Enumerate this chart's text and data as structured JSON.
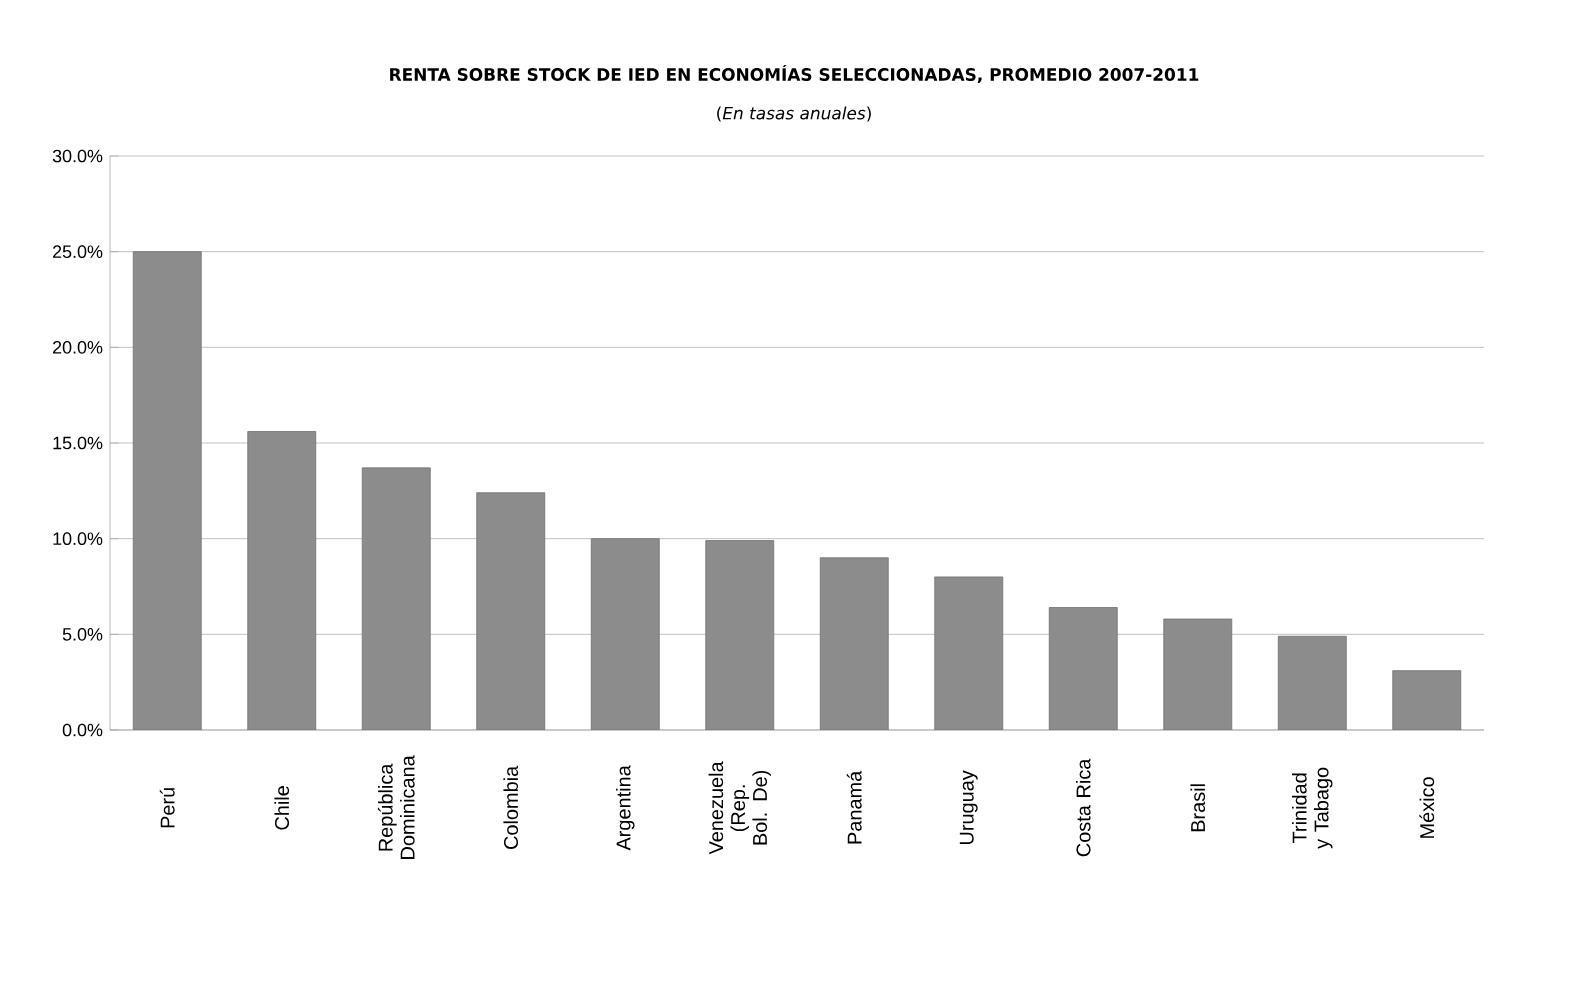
{
  "chart_data": {
    "type": "bar",
    "title": "RENTA SOBRE STOCK DE IED EN ECONOMÍAS SELECCIONADAS, PROMEDIO 2007-2011",
    "subtitle": "(*En tasas anuales*)",
    "categories": [
      "Perú",
      "Chile",
      "República Dominicana",
      "Colombia",
      "Argentina",
      "Venezuela (Rep. Bol. De)",
      "Panamá",
      "Uruguay",
      "Costa Rica",
      "Brasil",
      "Trinidad y Tabago",
      "México"
    ],
    "values": [
      25.0,
      15.6,
      13.7,
      12.4,
      10.0,
      9.9,
      9.0,
      8.0,
      6.4,
      5.8,
      4.9,
      3.1
    ],
    "color": "#8c8c8c",
    "ylim": [
      0,
      30
    ],
    "yticks": [
      {
        "value": 0,
        "label": "0.0%"
      },
      {
        "value": 5,
        "label": "5.0%"
      },
      {
        "value": 10,
        "label": "10.0%"
      },
      {
        "value": 15,
        "label": "15.0%"
      },
      {
        "value": 20,
        "label": "20.0%"
      },
      {
        "value": 25,
        "label": "25.0%"
      },
      {
        "value": 30,
        "label": "30.0%"
      }
    ],
    "grid": "y"
  }
}
